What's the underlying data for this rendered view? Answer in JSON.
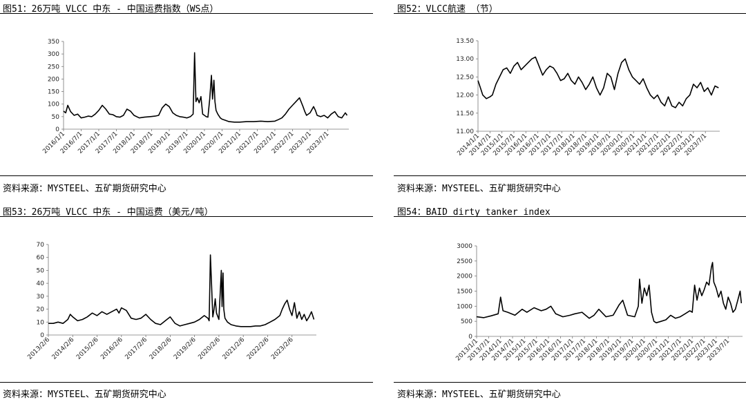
{
  "chart_data": [
    {
      "id": "c1",
      "type": "line",
      "title": "图51：26万吨 VLCC 中东 - 中国运费指数（WS点）",
      "source": "资料来源：MYSTEEL、五矿期货研究中心",
      "line_color": "#000000",
      "ylim": [
        0,
        350
      ],
      "yticks": [
        "0",
        "50",
        "100",
        "150",
        "200",
        "250",
        "300",
        "350"
      ],
      "xlim": [
        2016.0,
        2024.1
      ],
      "xticks": [
        2016.0,
        2016.5,
        2017.0,
        2017.5,
        2018.0,
        2018.5,
        2019.0,
        2019.5,
        2020.0,
        2020.5,
        2021.0,
        2021.5,
        2022.0,
        2022.5,
        2023.0,
        2023.5
      ],
      "xticklabels": [
        "2016/1/1",
        "2016/7/1",
        "2017/1/1",
        "2017/7/1",
        "2018/1/1",
        "2018/7/1",
        "2019/1/1",
        "2019/7/1",
        "2020/1/1",
        "2020/7/1",
        "2021/1/1",
        "2021/7/1",
        "2022/1/1",
        "2022/7/1",
        "2023/1/1",
        "2023/7/1"
      ],
      "x": [
        2016.0,
        2016.06,
        2016.12,
        2016.2,
        2016.3,
        2016.4,
        2016.5,
        2016.6,
        2016.7,
        2016.8,
        2016.9,
        2017.0,
        2017.1,
        2017.2,
        2017.3,
        2017.4,
        2017.5,
        2017.6,
        2017.7,
        2017.8,
        2017.9,
        2018.0,
        2018.15,
        2018.3,
        2018.45,
        2018.6,
        2018.7,
        2018.8,
        2018.9,
        2019.0,
        2019.1,
        2019.2,
        2019.3,
        2019.4,
        2019.5,
        2019.6,
        2019.68,
        2019.72,
        2019.76,
        2019.8,
        2019.85,
        2019.9,
        2019.95,
        2020.0,
        2020.05,
        2020.1,
        2020.15,
        2020.2,
        2020.23,
        2020.27,
        2020.3,
        2020.33,
        2020.38,
        2020.45,
        2020.5,
        2020.6,
        2020.7,
        2020.85,
        2021.0,
        2021.2,
        2021.4,
        2021.6,
        2021.8,
        2022.0,
        2022.1,
        2022.2,
        2022.3,
        2022.4,
        2022.5,
        2022.6,
        2022.7,
        2022.8,
        2022.85,
        2022.9,
        2023.0,
        2023.1,
        2023.15,
        2023.2,
        2023.3,
        2023.4,
        2023.5,
        2023.6,
        2023.7,
        2023.8,
        2023.9,
        2024.0,
        2024.05
      ],
      "y": [
        72,
        65,
        95,
        70,
        55,
        60,
        45,
        48,
        52,
        50,
        60,
        75,
        95,
        80,
        60,
        58,
        50,
        48,
        55,
        80,
        72,
        55,
        45,
        48,
        50,
        52,
        55,
        85,
        100,
        90,
        65,
        55,
        50,
        48,
        45,
        50,
        60,
        305,
        110,
        125,
        105,
        130,
        60,
        55,
        50,
        48,
        120,
        215,
        120,
        195,
        110,
        75,
        60,
        45,
        40,
        35,
        30,
        28,
        28,
        30,
        30,
        32,
        30,
        32,
        38,
        45,
        60,
        80,
        95,
        110,
        125,
        90,
        70,
        55,
        65,
        90,
        75,
        55,
        50,
        55,
        45,
        60,
        70,
        50,
        45,
        65,
        55
      ]
    },
    {
      "id": "c2",
      "type": "line",
      "title": "图52：VLCC航速 （节）",
      "source": "资料来源：MYSTEEL、五矿期货研究中心",
      "line_color": "#000000",
      "ylim": [
        11.0,
        13.5
      ],
      "yticks": [
        "11.00",
        "11.50",
        "12.00",
        "12.50",
        "13.00",
        "13.50"
      ],
      "xlim": [
        2014.0,
        2024.1
      ],
      "xticks": [
        2014.0,
        2014.5,
        2015.0,
        2015.5,
        2016.0,
        2016.5,
        2017.0,
        2017.5,
        2018.0,
        2018.5,
        2019.0,
        2019.5,
        2020.0,
        2020.5,
        2021.0,
        2021.5,
        2022.0,
        2022.5,
        2023.0,
        2023.5
      ],
      "xticklabels": [
        "2014/1/1",
        "2014/7/1",
        "2015/1/1",
        "2015/7/1",
        "2016/1/1",
        "2016/7/1",
        "2017/1/1",
        "2017/7/1",
        "2018/1/1",
        "2018/7/1",
        "2019/1/1",
        "2019/7/1",
        "2020/1/1",
        "2020/7/1",
        "2021/1/1",
        "2021/7/1",
        "2022/1/1",
        "2022/7/1",
        "2023/1/1",
        "2023/7/1"
      ],
      "x": [
        2014.0,
        2014.1,
        2014.2,
        2014.35,
        2014.5,
        2014.6,
        2014.75,
        2014.9,
        2015.05,
        2015.2,
        2015.35,
        2015.5,
        2015.65,
        2015.8,
        2015.95,
        2016.1,
        2016.25,
        2016.4,
        2016.55,
        2016.7,
        2016.85,
        2017.0,
        2017.15,
        2017.3,
        2017.45,
        2017.6,
        2017.75,
        2017.9,
        2018.05,
        2018.2,
        2018.35,
        2018.5,
        2018.65,
        2018.8,
        2018.95,
        2019.1,
        2019.25,
        2019.4,
        2019.55,
        2019.7,
        2019.85,
        2020.0,
        2020.15,
        2020.3,
        2020.45,
        2020.6,
        2020.75,
        2020.9,
        2021.05,
        2021.2,
        2021.35,
        2021.5,
        2021.65,
        2021.8,
        2021.95,
        2022.1,
        2022.25,
        2022.4,
        2022.55,
        2022.7,
        2022.85,
        2023.0,
        2023.15,
        2023.3,
        2023.45,
        2023.6,
        2023.75,
        2023.9,
        2024.05
      ],
      "y": [
        12.4,
        12.2,
        12.0,
        11.9,
        11.95,
        12.0,
        12.3,
        12.5,
        12.7,
        12.75,
        12.6,
        12.8,
        12.9,
        12.7,
        12.8,
        12.9,
        13.0,
        13.05,
        12.8,
        12.55,
        12.7,
        12.8,
        12.75,
        12.6,
        12.4,
        12.45,
        12.6,
        12.4,
        12.3,
        12.5,
        12.35,
        12.15,
        12.3,
        12.5,
        12.2,
        12.0,
        12.2,
        12.6,
        12.5,
        12.15,
        12.6,
        12.9,
        13.0,
        12.7,
        12.5,
        12.4,
        12.3,
        12.45,
        12.2,
        12.0,
        11.9,
        12.0,
        11.8,
        11.7,
        11.95,
        11.7,
        11.65,
        11.8,
        11.7,
        11.9,
        12.0,
        12.3,
        12.2,
        12.35,
        12.1,
        12.2,
        12.0,
        12.25,
        12.2
      ]
    },
    {
      "id": "c3",
      "type": "line",
      "title": "图53：26万吨 VLCC 中东 - 中国运费（美元/吨）",
      "source": "资料来源：MYSTEEL、五矿期货研究中心",
      "line_color": "#000000",
      "ylim": [
        0,
        70
      ],
      "yticks": [
        "0",
        "10",
        "20",
        "30",
        "40",
        "50",
        "60",
        "70"
      ],
      "xlim": [
        2013.1,
        2024.1
      ],
      "xticks": [
        2013.1,
        2014.1,
        2015.1,
        2016.1,
        2017.1,
        2018.1,
        2019.1,
        2020.1,
        2021.1,
        2022.1,
        2023.1
      ],
      "xticklabels": [
        "2013/2/6",
        "2014/2/6",
        "2015/2/6",
        "2016/2/6",
        "2017/2/6",
        "2018/2/6",
        "2019/2/6",
        "2020/2/6",
        "2021/2/6",
        "2022/2/6",
        "2023/2/6"
      ],
      "x": [
        2013.1,
        2013.3,
        2013.5,
        2013.7,
        2013.9,
        2014.0,
        2014.1,
        2014.3,
        2014.5,
        2014.7,
        2014.9,
        2015.1,
        2015.3,
        2015.5,
        2015.7,
        2015.9,
        2016.0,
        2016.1,
        2016.3,
        2016.5,
        2016.7,
        2016.9,
        2017.1,
        2017.3,
        2017.5,
        2017.7,
        2017.9,
        2018.1,
        2018.3,
        2018.5,
        2018.7,
        2018.9,
        2019.1,
        2019.3,
        2019.5,
        2019.65,
        2019.7,
        2019.75,
        2019.85,
        2019.9,
        2019.95,
        2020.0,
        2020.1,
        2020.2,
        2020.23,
        2020.27,
        2020.3,
        2020.35,
        2020.45,
        2020.6,
        2020.8,
        2021.0,
        2021.2,
        2021.4,
        2021.6,
        2021.8,
        2022.0,
        2022.2,
        2022.4,
        2022.6,
        2022.7,
        2022.8,
        2022.9,
        2023.0,
        2023.1,
        2023.2,
        2023.3,
        2023.4,
        2023.5,
        2023.6,
        2023.7,
        2023.8,
        2023.9,
        2024.0
      ],
      "y": [
        9,
        9,
        10,
        9,
        12,
        16,
        14,
        11,
        12,
        14,
        17,
        15,
        18,
        16,
        18,
        20,
        17,
        21,
        19,
        13,
        12,
        13,
        16,
        12,
        9,
        8,
        11,
        14,
        9,
        7,
        8,
        9,
        10,
        12,
        15,
        13,
        11,
        62,
        14,
        20,
        28,
        17,
        12,
        50,
        22,
        48,
        20,
        13,
        10,
        8,
        7,
        6.5,
        6.5,
        6.5,
        7,
        7,
        8,
        10,
        12,
        15,
        20,
        24,
        27,
        20,
        15,
        25,
        13,
        18,
        12,
        16,
        11,
        14,
        18,
        12
      ]
    },
    {
      "id": "c4",
      "type": "line",
      "title": "图54：BAID dirty tanker index",
      "source": "资料来源：MYSTEEL、五矿期货研究中心",
      "line_color": "#000000",
      "ylim": [
        0,
        3000
      ],
      "yticks": [
        "0",
        "500",
        "1000",
        "1500",
        "2000",
        "2500",
        "3000"
      ],
      "xlim": [
        2013.0,
        2024.1
      ],
      "xticks": [
        2013.0,
        2013.5,
        2014.0,
        2014.5,
        2015.0,
        2015.5,
        2016.0,
        2016.5,
        2017.0,
        2017.5,
        2018.0,
        2018.5,
        2019.0,
        2019.5,
        2020.0,
        2020.5,
        2021.0,
        2021.5,
        2022.0,
        2022.5,
        2023.0,
        2023.5
      ],
      "xticklabels": [
        "2013/1/1",
        "2013/7/1",
        "2014/1/1",
        "2014/7/1",
        "2015/1/1",
        "2015/7/1",
        "2016/1/1",
        "2016/7/1",
        "2017/1/1",
        "2017/7/1",
        "2018/1/1",
        "2018/7/1",
        "2019/1/1",
        "2019/7/1",
        "2020/1/1",
        "2020/7/1",
        "2021/1/1",
        "2021/7/1",
        "2022/1/1",
        "2022/7/1",
        "2023/1/1",
        "2023/7/1"
      ],
      "x": [
        2013.0,
        2013.3,
        2013.6,
        2013.9,
        2014.0,
        2014.1,
        2014.3,
        2014.6,
        2014.9,
        2015.1,
        2015.4,
        2015.7,
        2015.9,
        2016.1,
        2016.3,
        2016.6,
        2016.9,
        2017.1,
        2017.4,
        2017.7,
        2017.9,
        2018.1,
        2018.4,
        2018.7,
        2018.95,
        2019.1,
        2019.3,
        2019.6,
        2019.75,
        2019.8,
        2019.9,
        2020.0,
        2020.1,
        2020.2,
        2020.3,
        2020.4,
        2020.5,
        2020.7,
        2020.9,
        2021.1,
        2021.3,
        2021.5,
        2021.7,
        2021.9,
        2022.0,
        2022.1,
        2022.2,
        2022.3,
        2022.4,
        2022.5,
        2022.6,
        2022.7,
        2022.8,
        2022.85,
        2022.9,
        2023.0,
        2023.1,
        2023.2,
        2023.3,
        2023.4,
        2023.5,
        2023.6,
        2023.7,
        2023.8,
        2023.9,
        2024.0,
        2024.05
      ],
      "y": [
        650,
        620,
        680,
        750,
        1300,
        850,
        800,
        700,
        900,
        800,
        950,
        850,
        900,
        1000,
        750,
        650,
        700,
        750,
        800,
        600,
        700,
        900,
        650,
        700,
        1050,
        1200,
        700,
        650,
        1000,
        1900,
        1100,
        1600,
        1350,
        1700,
        800,
        500,
        450,
        500,
        550,
        700,
        600,
        650,
        750,
        850,
        800,
        1700,
        1200,
        1600,
        1350,
        1550,
        1800,
        1700,
        2300,
        2450,
        1800,
        1600,
        1300,
        1500,
        1100,
        900,
        1300,
        1100,
        800,
        900,
        1200,
        1500,
        1100
      ]
    }
  ]
}
